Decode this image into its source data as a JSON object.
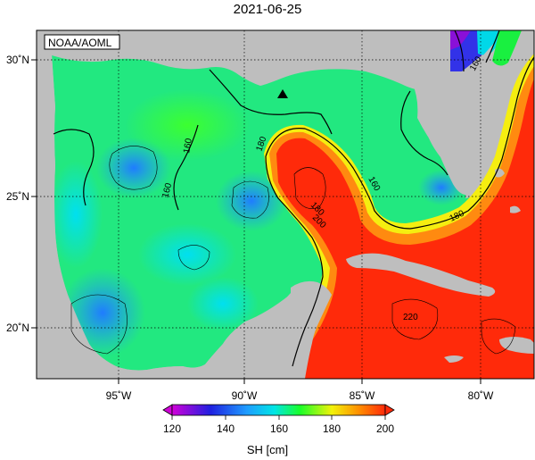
{
  "title": "2021-06-25",
  "credit": "NOAA/AOML",
  "colorbar": {
    "label": "SH [cm]",
    "ticks": [
      "120",
      "140",
      "160",
      "180",
      "200"
    ],
    "min": 120,
    "max": 200,
    "stops": [
      "#d000d8",
      "#1f20e0",
      "#1f9cff",
      "#00e5e5",
      "#19ff29",
      "#f2f20a",
      "#ff8c00",
      "#ff2a0a"
    ]
  },
  "axes": {
    "lon_labels": [
      "95˚W",
      "90˚W",
      "85˚W",
      "80˚W"
    ],
    "lat_labels": [
      "30˚N",
      "25˚N",
      "20˚N"
    ]
  },
  "contour_labels": [
    "160",
    "180",
    "160",
    "180",
    "200",
    "160",
    "180",
    "160",
    "220"
  ],
  "marker": {
    "symbol": "triangle",
    "color": "#000000"
  },
  "colors": {
    "land": "#bebebe",
    "ocean_low": "#1f9cff",
    "ocean_high": "#ff2a0a"
  }
}
